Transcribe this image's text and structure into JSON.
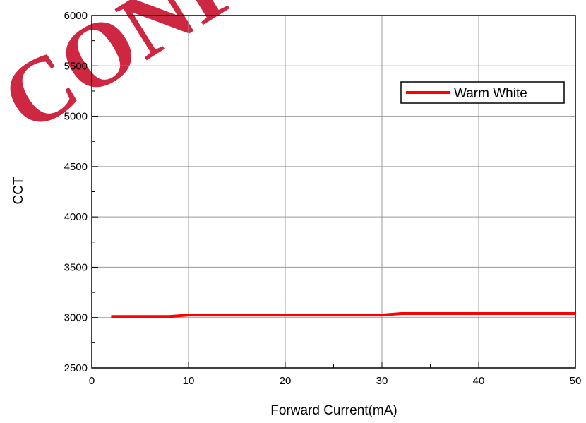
{
  "watermark": "CONFIDE",
  "chart_data": {
    "type": "line",
    "xlabel": "Forward Current(mA)",
    "ylabel": "CCT",
    "xlim": [
      0,
      50
    ],
    "ylim": [
      2500,
      6000
    ],
    "x_ticks": [
      0,
      10,
      20,
      30,
      40,
      50
    ],
    "y_ticks": [
      2500,
      3000,
      3500,
      4000,
      4500,
      5000,
      5500,
      6000
    ],
    "grid": true,
    "legend_position": "top-right",
    "series": [
      {
        "name": "Warm White",
        "color": "#ff0000",
        "x": [
          2,
          8,
          10,
          30,
          32,
          50
        ],
        "y": [
          3010,
          3010,
          3025,
          3025,
          3040,
          3040
        ]
      }
    ]
  }
}
